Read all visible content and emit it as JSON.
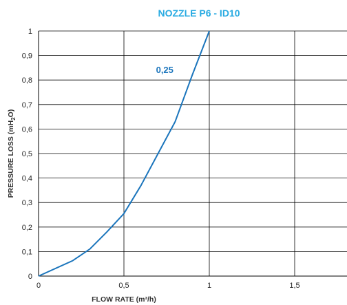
{
  "chart_data": {
    "type": "line",
    "title": "NOZZLE P6 - ID10",
    "xlabel": "FLOW RATE (m³/h)",
    "ylabel": {
      "prefix": "PRESSURE LOSS (mH",
      "subscript": "2",
      "suffix": "O)"
    },
    "xlim": [
      0,
      1.8
    ],
    "ylim": [
      0,
      1
    ],
    "x_ticks": [
      {
        "value": 0,
        "label": "0"
      },
      {
        "value": 0.5,
        "label": "0,5"
      },
      {
        "value": 1,
        "label": "1"
      },
      {
        "value": 1.5,
        "label": "1,5"
      }
    ],
    "y_ticks": [
      {
        "value": 0,
        "label": "0"
      },
      {
        "value": 0.1,
        "label": "0,1"
      },
      {
        "value": 0.2,
        "label": "0,2"
      },
      {
        "value": 0.3,
        "label": "0,3"
      },
      {
        "value": 0.4,
        "label": "0,4"
      },
      {
        "value": 0.5,
        "label": "0,5"
      },
      {
        "value": 0.6,
        "label": "0,6"
      },
      {
        "value": 0.7,
        "label": "0,7"
      },
      {
        "value": 0.8,
        "label": "0,8"
      },
      {
        "value": 0.9,
        "label": "0,9"
      },
      {
        "value": 1,
        "label": "1"
      }
    ],
    "grid": true,
    "series": [
      {
        "name": "0,25",
        "label_anchor": {
          "x": 0.79,
          "y": 0.84
        },
        "x": [
          0,
          0.2,
          0.3,
          0.4,
          0.5,
          0.6,
          0.7,
          0.8,
          0.9,
          1.0
        ],
        "y": [
          0,
          0.063,
          0.11,
          0.18,
          0.255,
          0.37,
          0.5,
          0.63,
          0.82,
          1.0
        ]
      }
    ],
    "colors": {
      "title": "#29ABE2",
      "line": "#1B75BC",
      "label": "#1B75BC",
      "grid": "#000000"
    }
  }
}
